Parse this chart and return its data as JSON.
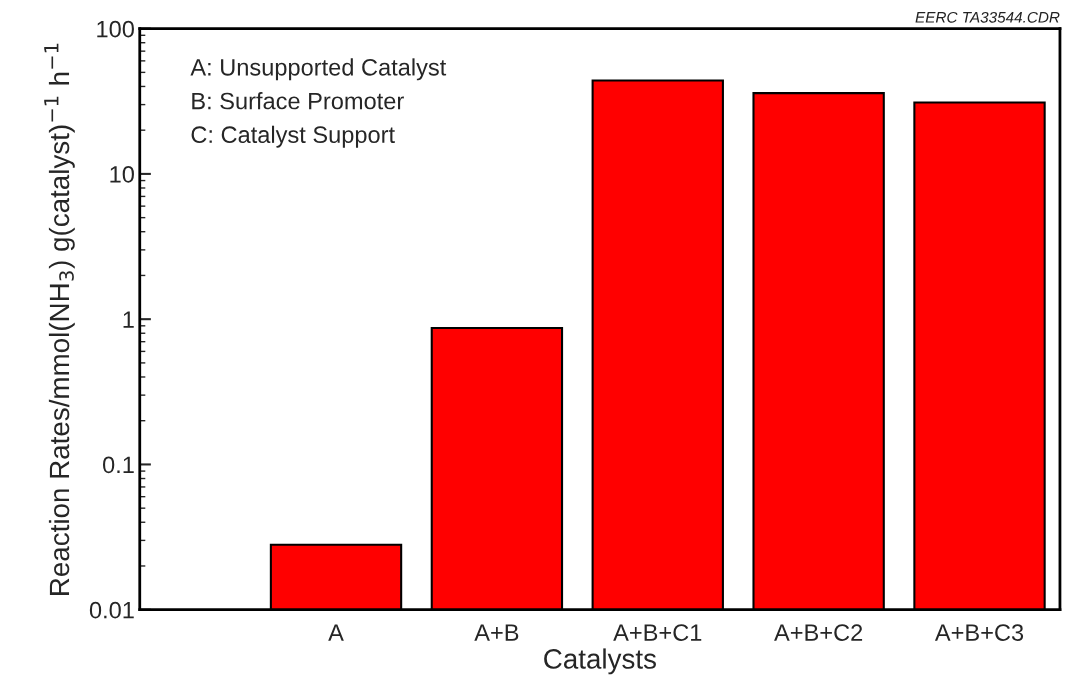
{
  "chart_data": {
    "type": "bar",
    "xlabel": "Catalysts",
    "ylabel": "Reaction Rates/mmol(NH$_{3}$) g(catalyst)$^{−1}$ h$^{−1}$",
    "categories": [
      "A",
      "A+B",
      "A+B+C1",
      "A+B+C2",
      "A+B+C3"
    ],
    "values": [
      0.028,
      0.87,
      44,
      36,
      31
    ],
    "color": "#ff0000",
    "log": "y",
    "ylim": [
      0.01,
      100
    ],
    "yticks": [
      0.01,
      0.1,
      1,
      10,
      100
    ],
    "grid": false,
    "annotations": [
      "A: Unsupported Catalyst",
      "B: Surface Promoter",
      "C: Catalyst Support",
      "EERC TA33544.CDR"
    ]
  }
}
